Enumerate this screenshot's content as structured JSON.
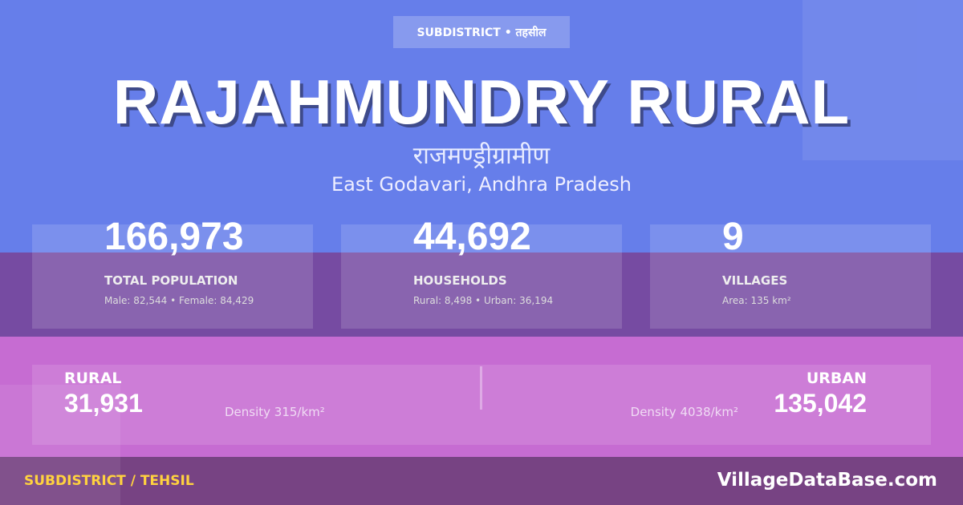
{
  "header": {
    "badge": "SUBDISTRICT • तहसील",
    "title": "RAJAHMUNDRY RURAL",
    "title_hindi": "राजमण्ड्रीग्रामीण",
    "location": "East Godavari, Andhra Pradesh"
  },
  "stats": [
    {
      "value": "166,973",
      "label": "TOTAL POPULATION",
      "detail": "Male: 82,544 • Female: 84,429"
    },
    {
      "value": "44,692",
      "label": "HOUSEHOLDS",
      "detail": "Rural: 8,498 • Urban: 36,194"
    },
    {
      "value": "9",
      "label": "VILLAGES",
      "detail": "Area: 135 km²"
    }
  ],
  "split": {
    "rural": {
      "label": "RURAL",
      "value": "31,931",
      "density": "Density 315/km²"
    },
    "urban": {
      "label": "URBAN",
      "value": "135,042",
      "density": "Density 4038/km²"
    }
  },
  "footer": {
    "category": "SUBDISTRICT / TEHSIL",
    "site": "VillageDataBase.com"
  },
  "colors": {
    "blue": "#667eea",
    "purple": "#764ba2",
    "pink": "#c66cd2",
    "footer": "#774383",
    "accent": "#ffd23f"
  }
}
